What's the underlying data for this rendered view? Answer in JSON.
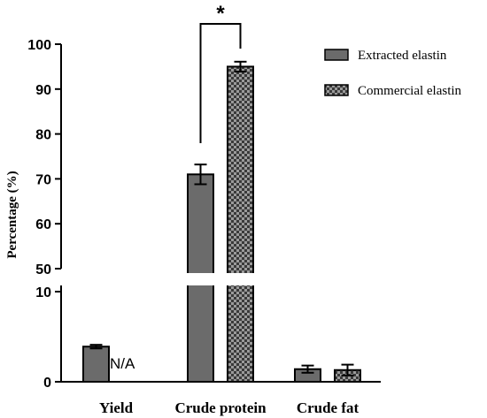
{
  "chart_data": {
    "type": "bar",
    "ylabel": "Percentage (%)",
    "categories": [
      "Yield",
      "Crude protein",
      "Crude fat"
    ],
    "series": [
      {
        "name": "Extracted elastin",
        "values": [
          3.9,
          71.0,
          1.4
        ],
        "errors": [
          0.2,
          2.2,
          0.4
        ],
        "color": "#6b6b6b",
        "pattern": "solid"
      },
      {
        "name": "Commercial elastin",
        "values": [
          null,
          95.0,
          1.3
        ],
        "errors": [
          null,
          1.1,
          0.6
        ],
        "color": "#7a7a7a",
        "pattern": "checkered"
      }
    ],
    "y_axis_segments": [
      {
        "range": [
          0,
          10
        ],
        "ticks": [
          0,
          10
        ]
      },
      {
        "range": [
          50,
          100
        ],
        "ticks": [
          50,
          60,
          70,
          80,
          90,
          100
        ]
      }
    ],
    "axis_break": true,
    "annotations": [
      {
        "text": "N/A",
        "category": "Yield",
        "series": "Commercial elastin"
      },
      {
        "text": "*",
        "category": "Crude protein",
        "type": "significance-bracket"
      }
    ],
    "legend_position": "top-right",
    "grid": false
  }
}
